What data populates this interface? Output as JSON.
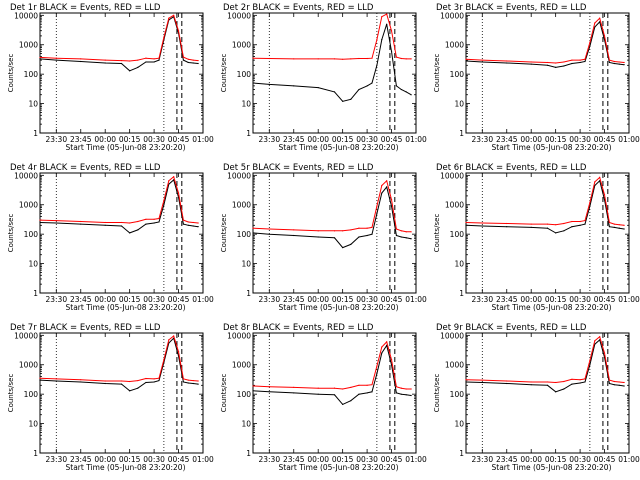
{
  "figure": {
    "ylabel": "Counts/sec",
    "xlabel": "Start Time (05-Jun-08 23:20:20)",
    "x_tick_labels": [
      "23:30",
      "23:45",
      "00:00",
      "00:15",
      "00:30",
      "00:45",
      "01:00"
    ],
    "y_tick_labels": [
      "1",
      "10",
      "100",
      "1000",
      "10000"
    ],
    "colors": {
      "events": "#000000",
      "lld": "#ff0000",
      "axes": "#000000",
      "background": "#ffffff"
    }
  },
  "chart_data": [
    {
      "type": "line",
      "title": "Det 1r BLACK = Events, RED = LLD",
      "xlabel": "Start Time (05-Jun-08 23:20:20)",
      "ylabel": "Counts/sec",
      "yscale": "log",
      "ylim": [
        1,
        12000
      ],
      "xlim": [
        "23:20",
        "01:00"
      ],
      "x": [
        "23:20",
        "23:30",
        "23:45",
        "00:00",
        "00:10",
        "00:15",
        "00:20",
        "00:25",
        "00:30",
        "00:33",
        "00:36",
        "00:39",
        "00:42",
        "00:45",
        "00:48",
        "00:51",
        "00:54",
        "00:57"
      ],
      "series": [
        {
          "name": "Events",
          "values": [
            330,
            300,
            270,
            240,
            230,
            130,
            170,
            260,
            260,
            300,
            1500,
            7000,
            9000,
            2500,
            300,
            250,
            240,
            230
          ]
        },
        {
          "name": "LLD",
          "values": [
            370,
            350,
            330,
            300,
            290,
            280,
            300,
            350,
            330,
            350,
            1800,
            8000,
            10000,
            3000,
            380,
            320,
            300,
            290
          ]
        }
      ],
      "annotations": {
        "dotted_lines": [
          "23:30",
          "00:36"
        ],
        "dashed_lines": [
          "00:44",
          "00:47"
        ]
      }
    },
    {
      "type": "line",
      "title": "Det 2r BLACK = Events, RED = LLD",
      "xlabel": "Start Time (05-Jun-08 23:20:20)",
      "ylabel": "Counts/sec",
      "yscale": "log",
      "ylim": [
        1,
        12000
      ],
      "xlim": [
        "23:20",
        "01:00"
      ],
      "x": [
        "23:20",
        "23:30",
        "23:45",
        "00:00",
        "00:10",
        "00:15",
        "00:20",
        "00:25",
        "00:30",
        "00:33",
        "00:36",
        "00:39",
        "00:42",
        "00:45",
        "00:48",
        "00:51",
        "00:54",
        "00:57"
      ],
      "series": [
        {
          "name": "Events",
          "values": [
            50,
            45,
            40,
            35,
            25,
            12,
            14,
            30,
            40,
            50,
            200,
            1500,
            5000,
            600,
            40,
            30,
            25,
            20
          ]
        },
        {
          "name": "LLD",
          "values": [
            350,
            340,
            330,
            330,
            330,
            320,
            330,
            340,
            340,
            350,
            1500,
            9000,
            11000,
            3000,
            380,
            340,
            330,
            330
          ]
        }
      ],
      "annotations": {
        "dotted_lines": [
          "23:30",
          "00:36"
        ],
        "dashed_lines": [
          "00:44",
          "00:47"
        ]
      }
    },
    {
      "type": "line",
      "title": "Det 3r BLACK = Events, RED = LLD",
      "xlabel": "Start Time (05-Jun-08 23:20:20)",
      "ylabel": "Counts/sec",
      "yscale": "log",
      "ylim": [
        1,
        12000
      ],
      "xlim": [
        "23:20",
        "01:00"
      ],
      "x": [
        "23:20",
        "23:30",
        "23:45",
        "00:00",
        "00:10",
        "00:15",
        "00:20",
        "00:25",
        "00:30",
        "00:33",
        "00:36",
        "00:39",
        "00:42",
        "00:45",
        "00:48",
        "00:51",
        "00:54",
        "00:57"
      ],
      "series": [
        {
          "name": "Events",
          "values": [
            280,
            260,
            240,
            220,
            200,
            170,
            190,
            230,
            250,
            270,
            900,
            4000,
            6000,
            1500,
            250,
            230,
            220,
            210
          ]
        },
        {
          "name": "LLD",
          "values": [
            320,
            300,
            280,
            260,
            250,
            240,
            260,
            300,
            300,
            320,
            1200,
            5500,
            8000,
            2000,
            300,
            270,
            260,
            250
          ]
        }
      ],
      "annotations": {
        "dotted_lines": [
          "23:30",
          "00:36"
        ],
        "dashed_lines": [
          "00:44",
          "00:47"
        ]
      }
    },
    {
      "type": "line",
      "title": "Det 4r BLACK = Events, RED = LLD",
      "xlabel": "Start Time (05-Jun-08 23:20:20)",
      "ylabel": "Counts/sec",
      "yscale": "log",
      "ylim": [
        1,
        12000
      ],
      "xlim": [
        "23:20",
        "01:00"
      ],
      "x": [
        "23:20",
        "23:30",
        "23:45",
        "00:00",
        "00:10",
        "00:15",
        "00:20",
        "00:25",
        "00:30",
        "00:33",
        "00:36",
        "00:39",
        "00:42",
        "00:45",
        "00:48",
        "00:51",
        "00:54",
        "00:57"
      ],
      "series": [
        {
          "name": "Events",
          "values": [
            250,
            240,
            220,
            200,
            190,
            110,
            140,
            220,
            240,
            260,
            1000,
            5000,
            7000,
            1800,
            220,
            200,
            190,
            180
          ]
        },
        {
          "name": "LLD",
          "values": [
            300,
            290,
            270,
            250,
            250,
            240,
            270,
            320,
            320,
            340,
            1400,
            6500,
            9000,
            2500,
            300,
            260,
            250,
            240
          ]
        }
      ],
      "annotations": {
        "dotted_lines": [
          "23:30",
          "00:36"
        ],
        "dashed_lines": [
          "00:44",
          "00:47"
        ]
      }
    },
    {
      "type": "line",
      "title": "Det 5r BLACK = Events, RED = LLD",
      "xlabel": "Start Time (05-Jun-08 23:20:20)",
      "ylabel": "Counts/sec",
      "yscale": "log",
      "ylim": [
        1,
        12000
      ],
      "xlim": [
        "23:20",
        "01:00"
      ],
      "x": [
        "23:20",
        "23:30",
        "23:45",
        "00:00",
        "00:10",
        "00:15",
        "00:20",
        "00:25",
        "00:30",
        "00:33",
        "00:36",
        "00:39",
        "00:42",
        "00:45",
        "00:48",
        "00:51",
        "00:54",
        "00:57"
      ],
      "series": [
        {
          "name": "Events",
          "values": [
            110,
            100,
            90,
            80,
            75,
            35,
            45,
            80,
            90,
            100,
            500,
            2500,
            4000,
            900,
            90,
            80,
            75,
            70
          ]
        },
        {
          "name": "LLD",
          "values": [
            160,
            150,
            140,
            130,
            130,
            130,
            140,
            160,
            160,
            170,
            900,
            4500,
            6500,
            1500,
            150,
            130,
            120,
            120
          ]
        }
      ],
      "annotations": {
        "dotted_lines": [
          "23:30",
          "00:36"
        ],
        "dashed_lines": [
          "00:44",
          "00:47"
        ]
      }
    },
    {
      "type": "line",
      "title": "Det 6r BLACK = Events, RED = LLD",
      "xlabel": "Start Time (05-Jun-08 23:20:20)",
      "ylabel": "Counts/sec",
      "yscale": "log",
      "ylim": [
        1,
        12000
      ],
      "xlim": [
        "23:20",
        "01:00"
      ],
      "x": [
        "23:20",
        "23:30",
        "23:45",
        "00:00",
        "00:10",
        "00:15",
        "00:20",
        "00:25",
        "00:30",
        "00:33",
        "00:36",
        "00:39",
        "00:42",
        "00:45",
        "00:48",
        "00:51",
        "00:54",
        "00:57"
      ],
      "series": [
        {
          "name": "Events",
          "values": [
            200,
            190,
            180,
            170,
            160,
            110,
            130,
            180,
            200,
            220,
            900,
            4500,
            6500,
            1500,
            180,
            170,
            160,
            150
          ]
        },
        {
          "name": "LLD",
          "values": [
            250,
            240,
            230,
            220,
            220,
            210,
            230,
            270,
            270,
            290,
            1200,
            6000,
            8500,
            2200,
            250,
            220,
            210,
            200
          ]
        }
      ],
      "annotations": {
        "dotted_lines": [
          "23:30",
          "00:36"
        ],
        "dashed_lines": [
          "00:44",
          "00:47"
        ]
      }
    },
    {
      "type": "line",
      "title": "Det 7r BLACK = Events, RED = LLD",
      "xlabel": "Start Time (05-Jun-08 23:20:20)",
      "ylabel": "Counts/sec",
      "yscale": "log",
      "ylim": [
        1,
        12000
      ],
      "xlim": [
        "23:20",
        "01:00"
      ],
      "x": [
        "23:20",
        "23:30",
        "23:45",
        "00:00",
        "00:10",
        "00:15",
        "00:20",
        "00:25",
        "00:30",
        "00:33",
        "00:36",
        "00:39",
        "00:42",
        "00:45",
        "00:48",
        "00:51",
        "00:54",
        "00:57"
      ],
      "series": [
        {
          "name": "Events",
          "values": [
            300,
            280,
            260,
            230,
            220,
            130,
            160,
            250,
            260,
            290,
            1200,
            5500,
            8000,
            2000,
            260,
            240,
            230,
            220
          ]
        },
        {
          "name": "LLD",
          "values": [
            350,
            330,
            310,
            280,
            280,
            270,
            290,
            340,
            330,
            350,
            1500,
            7000,
            9500,
            2800,
            330,
            300,
            290,
            280
          ]
        }
      ],
      "annotations": {
        "dotted_lines": [
          "23:30",
          "00:36"
        ],
        "dashed_lines": [
          "00:44",
          "00:47"
        ]
      }
    },
    {
      "type": "line",
      "title": "Det 8r BLACK = Events, RED = LLD",
      "xlabel": "Start Time (05-Jun-08 23:20:20)",
      "ylabel": "Counts/sec",
      "yscale": "log",
      "ylim": [
        1,
        12000
      ],
      "xlim": [
        "23:20",
        "01:00"
      ],
      "x": [
        "23:20",
        "23:30",
        "23:45",
        "00:00",
        "00:10",
        "00:15",
        "00:20",
        "00:25",
        "00:30",
        "00:33",
        "00:36",
        "00:39",
        "00:42",
        "00:45",
        "00:48",
        "00:51",
        "00:54",
        "00:57"
      ],
      "series": [
        {
          "name": "Events",
          "values": [
            130,
            120,
            110,
            100,
            95,
            45,
            60,
            100,
            110,
            120,
            500,
            2500,
            4500,
            1000,
            110,
            100,
            95,
            90
          ]
        },
        {
          "name": "LLD",
          "values": [
            190,
            180,
            170,
            160,
            160,
            150,
            170,
            200,
            200,
            210,
            900,
            4000,
            6000,
            1500,
            180,
            160,
            150,
            150
          ]
        }
      ],
      "annotations": {
        "dotted_lines": [
          "23:30",
          "00:36"
        ],
        "dashed_lines": [
          "00:44",
          "00:47"
        ]
      }
    },
    {
      "type": "line",
      "title": "Det 9r BLACK = Events, RED = LLD",
      "xlabel": "Start Time (05-Jun-08 23:20:20)",
      "ylabel": "Counts/sec",
      "yscale": "log",
      "ylim": [
        1,
        12000
      ],
      "xlim": [
        "23:20",
        "01:00"
      ],
      "x": [
        "23:20",
        "23:30",
        "23:45",
        "00:00",
        "00:10",
        "00:15",
        "00:20",
        "00:25",
        "00:30",
        "00:33",
        "00:36",
        "00:39",
        "00:42",
        "00:45",
        "00:48",
        "00:51",
        "00:54",
        "00:57"
      ],
      "series": [
        {
          "name": "Events",
          "values": [
            260,
            250,
            230,
            210,
            200,
            120,
            150,
            220,
            240,
            260,
            1000,
            5000,
            7000,
            1800,
            230,
            210,
            200,
            190
          ]
        },
        {
          "name": "LLD",
          "values": [
            310,
            300,
            280,
            260,
            260,
            250,
            270,
            320,
            310,
            330,
            1400,
            6500,
            9000,
            2500,
            300,
            270,
            260,
            250
          ]
        }
      ],
      "annotations": {
        "dotted_lines": [
          "23:30",
          "00:36"
        ],
        "dashed_lines": [
          "00:44",
          "00:47"
        ]
      }
    }
  ]
}
